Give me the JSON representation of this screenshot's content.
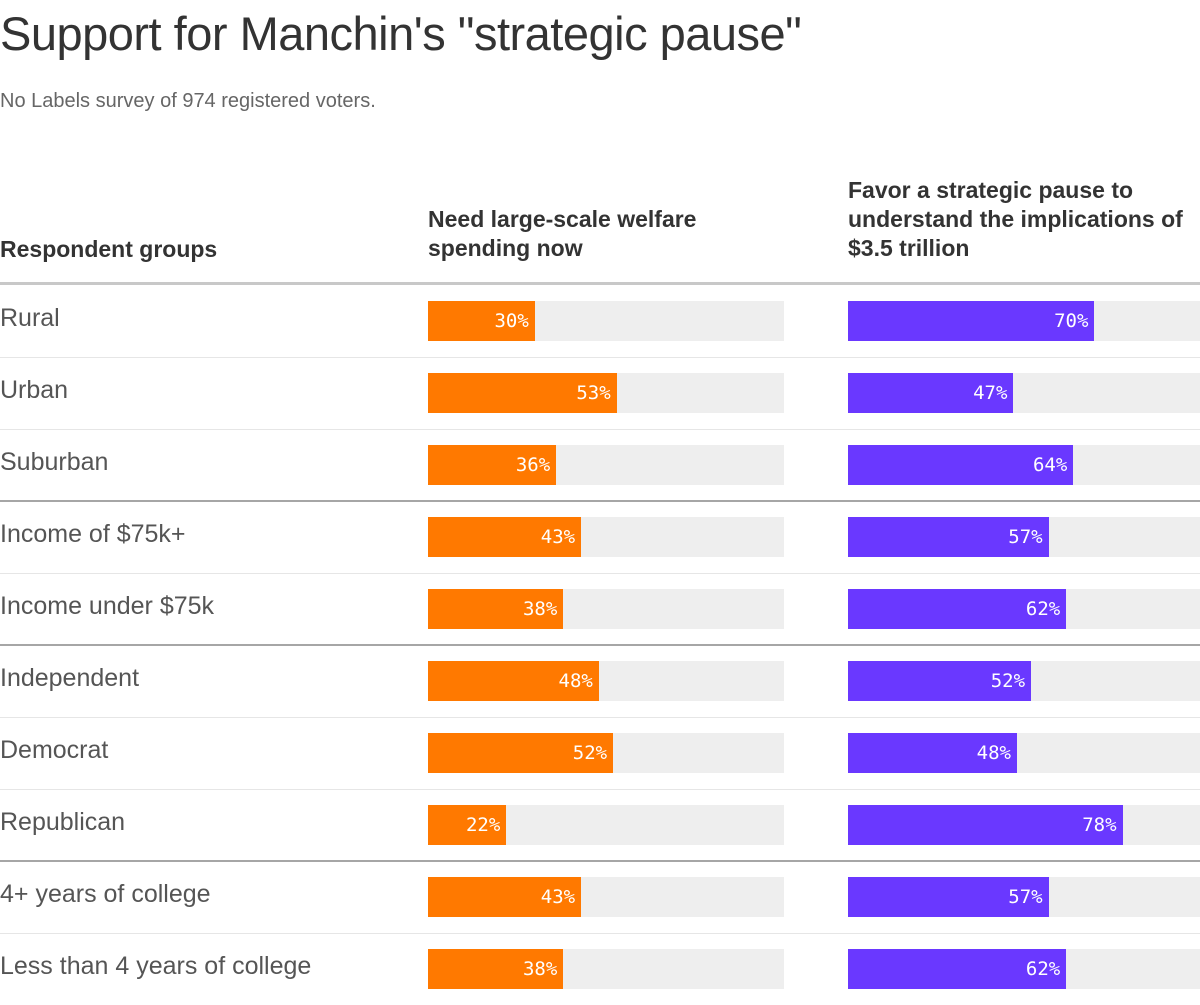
{
  "chart_data": {
    "type": "bar",
    "title": "Support for Manchin's \"strategic pause\"",
    "subtitle": "No Labels survey of 974 registered voters.",
    "unit": "%",
    "label_header": "Respondent groups",
    "categories": [
      "Rural",
      "Urban",
      "Suburban",
      "Income of $75k+",
      "Income under $75k",
      "Independent",
      "Democrat",
      "Republican",
      "4+ years of college",
      "Less than 4 years of college"
    ],
    "group_breaks_after": [
      2,
      4,
      7
    ],
    "series": [
      {
        "key": "welfare",
        "name": "Need large-scale welfare spending now",
        "color": "#ff7900",
        "values": [
          30,
          53,
          36,
          43,
          38,
          48,
          52,
          22,
          43,
          38
        ]
      },
      {
        "key": "pause",
        "name": "Favor a strategic pause to understand the implications of $3.5 trillion",
        "color": "#6a38ff",
        "values": [
          70,
          47,
          64,
          57,
          62,
          52,
          48,
          78,
          57,
          62
        ]
      }
    ],
    "xlim": [
      0,
      100
    ],
    "track_color": "#eeeeee",
    "grid": false,
    "legend": "none"
  }
}
